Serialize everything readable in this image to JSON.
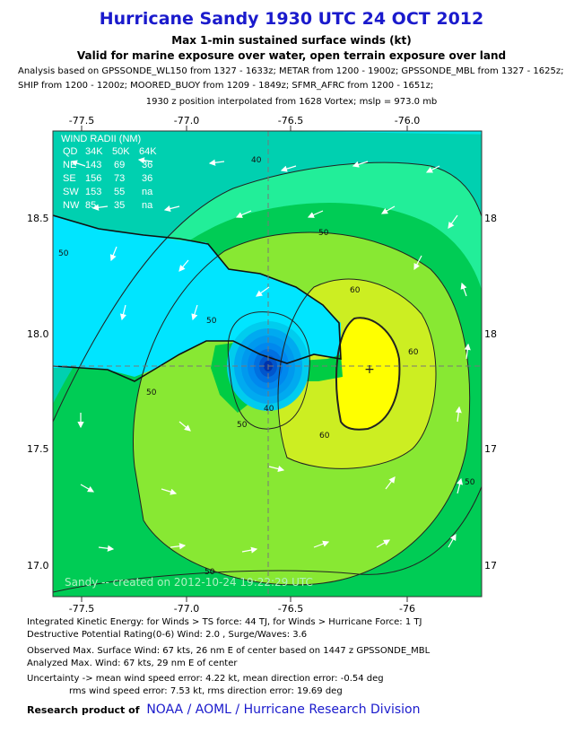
{
  "header": {
    "title": "Hurricane Sandy 1930 UTC 24 OCT 2012",
    "subtitle1": "Max 1-min sustained surface winds (kt)",
    "subtitle2": "Valid for marine exposure over water, open terrain exposure over land",
    "analysis_line1": "Analysis based on GPSSONDE_WL150 from 1327 - 1633z; METAR from 1200 - 1900z; GPSSONDE_MBL from 1327 - 1625z;",
    "analysis_line2": "SHIP from 1200 - 1200z; MOORED_BUOY from 1209 - 1849z; SFMR_AFRC from 1200 - 1651z;",
    "position_line": "1930 z position interpolated from 1628 Vortex; mslp = 973.0 mb"
  },
  "map": {
    "lon_ticks_top": [
      "-77.5",
      "-77.0",
      "-76.5",
      "-76.0"
    ],
    "lon_ticks_bottom": [
      "-77.5",
      "-77.0",
      "-76.5",
      "-76"
    ],
    "lat_ticks_left": [
      "18.5",
      "18.0",
      "17.5",
      "17.0"
    ],
    "lat_ticks_right": [
      "18",
      "18",
      "17",
      "17"
    ],
    "contour_labels": [
      "40",
      "50",
      "50",
      "60",
      "60",
      "50",
      "40",
      "50",
      "60",
      "50",
      "50",
      "50"
    ],
    "watermark": "Sandy -- created on 2012-10-24 19:22:29 UTC",
    "wind_radii": {
      "title": "WIND RADII (NM)",
      "headers": [
        "QD",
        "34K",
        "50K",
        "64K"
      ],
      "rows": [
        [
          "NE",
          "143",
          "69",
          "36"
        ],
        [
          "SE",
          "156",
          "73",
          "36"
        ],
        [
          "SW",
          "153",
          "55",
          "na"
        ],
        [
          "NW",
          "85",
          "35",
          "na"
        ]
      ]
    },
    "colors": {
      "ocean_cyan": "#00e5e5",
      "teal": "#00ccaa",
      "mint": "#22ee88",
      "green": "#00cc44",
      "lime": "#99ee33",
      "yellow_green": "#ccee22",
      "yellow": "#ffff00",
      "land_cyan": "#00e5ff",
      "eye_blue": "#0077ee"
    }
  },
  "footer": {
    "ike": "Integrated Kinetic Energy: for Winds > TS force: 44 TJ, for Winds > Hurricane Force: 1 TJ",
    "dpr": "Destructive Potential Rating(0-6)   Wind: 2.0 , Surge/Waves: 3.6",
    "observed": "Observed Max. Surface Wind: 67 kts, 26 nm E of center based on 1447 z GPSSONDE_MBL",
    "analyzed": "Analyzed Max. Wind: 67 kts, 29 nm  E of center",
    "uncertainty1": "Uncertainty -> mean wind speed error: 4.22 kt, mean direction error:  -0.54 deg",
    "uncertainty2": "rms wind speed error: 7.53 kt, rms direction error: 19.69 deg",
    "credit_prefix": "Research product of",
    "credit_org": "NOAA / AOML / Hurricane Research Division"
  }
}
